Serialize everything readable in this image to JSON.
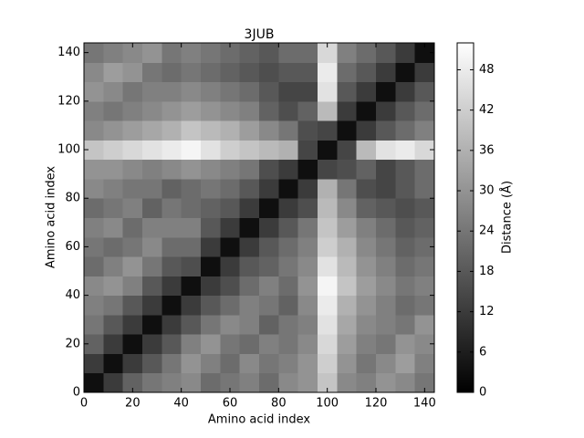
{
  "chart_data": {
    "type": "heatmap",
    "title": "3JUB",
    "x_label": "Amino acid index",
    "y_label": "Amino acid index",
    "colorbar_label": "Distance (Å)",
    "colormap": "gray",
    "xbins": [
      0,
      8,
      16,
      24,
      32,
      40,
      48,
      56,
      64,
      72,
      80,
      88,
      96,
      104,
      112,
      120,
      128,
      136,
      144
    ],
    "ybins": [
      0,
      8,
      16,
      24,
      32,
      40,
      48,
      56,
      64,
      72,
      80,
      88,
      96,
      104,
      112,
      120,
      128,
      136,
      144
    ],
    "z": [
      [
        3,
        12,
        20,
        24,
        26,
        28,
        22,
        24,
        26,
        22,
        28,
        30,
        40,
        28,
        26,
        30,
        28,
        24
      ],
      [
        12,
        3,
        12,
        18,
        24,
        30,
        26,
        22,
        28,
        24,
        26,
        30,
        42,
        30,
        24,
        28,
        32,
        26
      ],
      [
        20,
        12,
        3,
        12,
        18,
        26,
        30,
        24,
        22,
        26,
        24,
        28,
        44,
        32,
        26,
        24,
        30,
        28
      ],
      [
        24,
        18,
        12,
        3,
        12,
        18,
        24,
        28,
        26,
        20,
        24,
        26,
        46,
        34,
        28,
        26,
        24,
        30
      ],
      [
        26,
        24,
        18,
        12,
        3,
        12,
        18,
        22,
        26,
        24,
        20,
        28,
        48,
        36,
        30,
        26,
        22,
        24
      ],
      [
        28,
        30,
        26,
        18,
        12,
        3,
        12,
        16,
        22,
        26,
        22,
        30,
        50,
        40,
        32,
        28,
        24,
        26
      ],
      [
        22,
        26,
        30,
        24,
        18,
        16,
        3,
        12,
        18,
        20,
        24,
        28,
        46,
        38,
        30,
        26,
        22,
        24
      ],
      [
        24,
        22,
        24,
        28,
        22,
        22,
        12,
        3,
        12,
        18,
        22,
        26,
        42,
        36,
        28,
        24,
        20,
        22
      ],
      [
        26,
        28,
        22,
        26,
        26,
        26,
        18,
        12,
        3,
        12,
        18,
        24,
        40,
        32,
        26,
        22,
        18,
        20
      ],
      [
        22,
        24,
        26,
        20,
        24,
        22,
        20,
        18,
        12,
        3,
        12,
        16,
        38,
        28,
        20,
        18,
        16,
        18
      ],
      [
        28,
        26,
        24,
        24,
        20,
        22,
        24,
        22,
        18,
        12,
        3,
        12,
        36,
        24,
        16,
        14,
        18,
        22
      ],
      [
        30,
        30,
        28,
        26,
        28,
        30,
        28,
        26,
        24,
        16,
        12,
        3,
        14,
        16,
        20,
        14,
        18,
        22
      ],
      [
        40,
        42,
        44,
        46,
        48,
        50,
        46,
        42,
        40,
        38,
        36,
        14,
        3,
        14,
        38,
        46,
        48,
        44
      ],
      [
        28,
        30,
        32,
        34,
        36,
        40,
        38,
        36,
        32,
        28,
        24,
        16,
        14,
        3,
        12,
        18,
        22,
        26
      ],
      [
        26,
        24,
        26,
        28,
        30,
        32,
        30,
        28,
        26,
        20,
        16,
        20,
        38,
        12,
        3,
        12,
        18,
        22
      ],
      [
        30,
        28,
        24,
        26,
        26,
        28,
        26,
        24,
        22,
        18,
        14,
        14,
        46,
        18,
        12,
        3,
        12,
        18
      ],
      [
        28,
        32,
        30,
        24,
        22,
        24,
        22,
        20,
        18,
        16,
        18,
        18,
        48,
        22,
        18,
        12,
        3,
        12
      ],
      [
        24,
        26,
        28,
        30,
        24,
        26,
        24,
        22,
        20,
        18,
        22,
        22,
        44,
        26,
        22,
        18,
        12,
        3
      ]
    ],
    "xlim": [
      0,
      144
    ],
    "ylim": [
      0,
      144
    ],
    "xticks": [
      0,
      20,
      40,
      60,
      80,
      100,
      120,
      140
    ],
    "yticks": [
      0,
      20,
      40,
      60,
      80,
      100,
      120,
      140
    ],
    "clim": [
      0,
      52
    ],
    "cticks": [
      0,
      6,
      12,
      18,
      24,
      30,
      36,
      42,
      48
    ]
  }
}
